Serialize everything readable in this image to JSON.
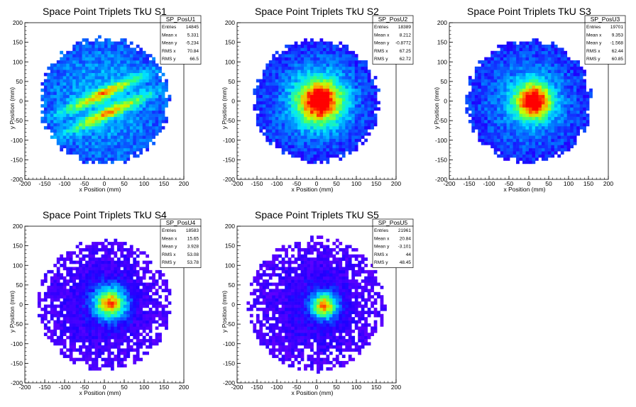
{
  "chart_data": [
    {
      "type": "heatmap",
      "title": "Space Point Triplets TkU S1",
      "xlabel": "x Position (mm)",
      "ylabel": "y Position (mm)",
      "xlim": [
        -200,
        200
      ],
      "ylim": [
        -200,
        200
      ],
      "xticks": [
        -200,
        -150,
        -100,
        -50,
        0,
        50,
        100,
        150,
        200
      ],
      "yticks": [
        -200,
        -150,
        -100,
        -50,
        0,
        50,
        100,
        150,
        200
      ],
      "stats": {
        "name": "SP_PosU1",
        "rows": [
          {
            "label": "Entries",
            "value": "14845"
          },
          {
            "label": "Mean x",
            "value": "5.331"
          },
          {
            "label": "Mean y",
            "value": "-5.234"
          },
          {
            "label": "RMS x",
            "value": "70.84"
          },
          {
            "label": "RMS y",
            "value": "66.5"
          }
        ]
      },
      "distribution": {
        "radius": 165,
        "center_x": 5,
        "center_y": -5,
        "core_sigma": 45,
        "band_angle_deg": 25
      }
    },
    {
      "type": "heatmap",
      "title": "Space Point Triplets TkU S2",
      "xlabel": "x Position (mm)",
      "ylabel": "y Position (mm)",
      "xlim": [
        -200,
        200
      ],
      "ylim": [
        -200,
        200
      ],
      "xticks": [
        -200,
        -150,
        -100,
        -50,
        0,
        50,
        100,
        150,
        200
      ],
      "yticks": [
        -200,
        -150,
        -100,
        -50,
        0,
        50,
        100,
        150,
        200
      ],
      "stats": {
        "name": "SP_PosU2",
        "rows": [
          {
            "label": "Entries",
            "value": "18389"
          },
          {
            "label": "Mean x",
            "value": "8.212"
          },
          {
            "label": "Mean y",
            "value": "-0.8772"
          },
          {
            "label": "RMS x",
            "value": "67.25"
          },
          {
            "label": "RMS y",
            "value": "62.72"
          }
        ]
      },
      "distribution": {
        "radius": 160,
        "center_x": 8,
        "center_y": -1,
        "core_sigma": 40
      }
    },
    {
      "type": "heatmap",
      "title": "Space Point Triplets TkU S3",
      "xlabel": "x Position (mm)",
      "ylabel": "y Position (mm)",
      "xlim": [
        -200,
        200
      ],
      "ylim": [
        -200,
        200
      ],
      "xticks": [
        -200,
        -150,
        -100,
        -50,
        0,
        50,
        100,
        150,
        200
      ],
      "yticks": [
        -200,
        -150,
        -100,
        -50,
        0,
        50,
        100,
        150,
        200
      ],
      "stats": {
        "name": "SP_PosU3",
        "rows": [
          {
            "label": "Entries",
            "value": "19701"
          },
          {
            "label": "Mean x",
            "value": "9.353"
          },
          {
            "label": "Mean y",
            "value": "-1.568"
          },
          {
            "label": "RMS x",
            "value": "62.44"
          },
          {
            "label": "RMS y",
            "value": "60.85"
          }
        ]
      },
      "distribution": {
        "radius": 160,
        "center_x": 12,
        "center_y": 0,
        "core_sigma": 32
      }
    },
    {
      "type": "heatmap",
      "title": "Space Point Triplets TkU S4",
      "xlabel": "x Position (mm)",
      "ylabel": "y Position (mm)",
      "xlim": [
        -200,
        200
      ],
      "ylim": [
        -200,
        200
      ],
      "xticks": [
        -200,
        -150,
        -100,
        -50,
        0,
        50,
        100,
        150,
        200
      ],
      "yticks": [
        -200,
        -150,
        -100,
        -50,
        0,
        50,
        100,
        150,
        200
      ],
      "stats": {
        "name": "SP_PosU4",
        "rows": [
          {
            "label": "Entries",
            "value": "18583"
          },
          {
            "label": "Mean x",
            "value": "15.65"
          },
          {
            "label": "Mean y",
            "value": "3.928"
          },
          {
            "label": "RMS x",
            "value": "53.08"
          },
          {
            "label": "RMS y",
            "value": "53.78"
          }
        ]
      },
      "distribution": {
        "radius": 160,
        "center_x": 15,
        "center_y": 4,
        "core_sigma": 28,
        "sparse": true
      }
    },
    {
      "type": "heatmap",
      "title": "Space Point Triplets TkU S5",
      "xlabel": "x Position (mm)",
      "ylabel": "y Position (mm)",
      "xlim": [
        -200,
        200
      ],
      "ylim": [
        -200,
        200
      ],
      "xticks": [
        -200,
        -150,
        -100,
        -50,
        0,
        50,
        100,
        150,
        200
      ],
      "yticks": [
        -200,
        -150,
        -100,
        -50,
        0,
        50,
        100,
        150,
        200
      ],
      "stats": {
        "name": "SP_PosU5",
        "rows": [
          {
            "label": "Entries",
            "value": "21961"
          },
          {
            "label": "Mean x",
            "value": "20.84"
          },
          {
            "label": "Mean y",
            "value": "-3.101"
          },
          {
            "label": "RMS x",
            "value": "44"
          },
          {
            "label": "RMS y",
            "value": "48.45"
          }
        ]
      },
      "distribution": {
        "radius": 165,
        "center_x": 20,
        "center_y": -3,
        "core_sigma": 22,
        "sparse": true
      }
    }
  ]
}
